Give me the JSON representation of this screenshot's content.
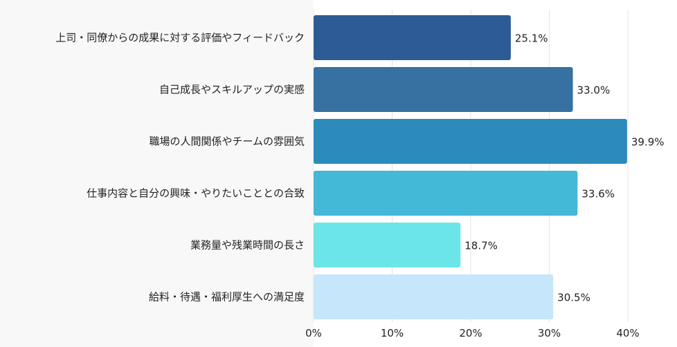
{
  "chart_data": {
    "type": "bar",
    "orientation": "horizontal",
    "title": "",
    "xlabel": "",
    "ylabel": "",
    "xlim": [
      0,
      40
    ],
    "grid": true,
    "x_ticks": [
      "0%",
      "10%",
      "20%",
      "30%",
      "40%"
    ],
    "x_tick_values": [
      0,
      10,
      20,
      30,
      40
    ],
    "categories": [
      "上司・同僚からの成果に対する評価やフィードバック",
      "自己成長やスキルアップの実感",
      "職場の人間関係やチームの雰囲気",
      "仕事内容と自分の興味・やりたいこととの合致",
      "業務量や残業時間の長さ",
      "給料・待遇・福利厚生への満足度"
    ],
    "values": [
      25.1,
      33.0,
      39.9,
      33.6,
      18.7,
      30.5
    ],
    "value_labels": [
      "25.1%",
      "33.0%",
      "39.9%",
      "33.6%",
      "18.7%",
      "30.5%"
    ],
    "colors": [
      "#2d5b96",
      "#3671a1",
      "#2d8bbb",
      "#43b8d7",
      "#6ce5e8",
      "#c6e6fb"
    ]
  }
}
